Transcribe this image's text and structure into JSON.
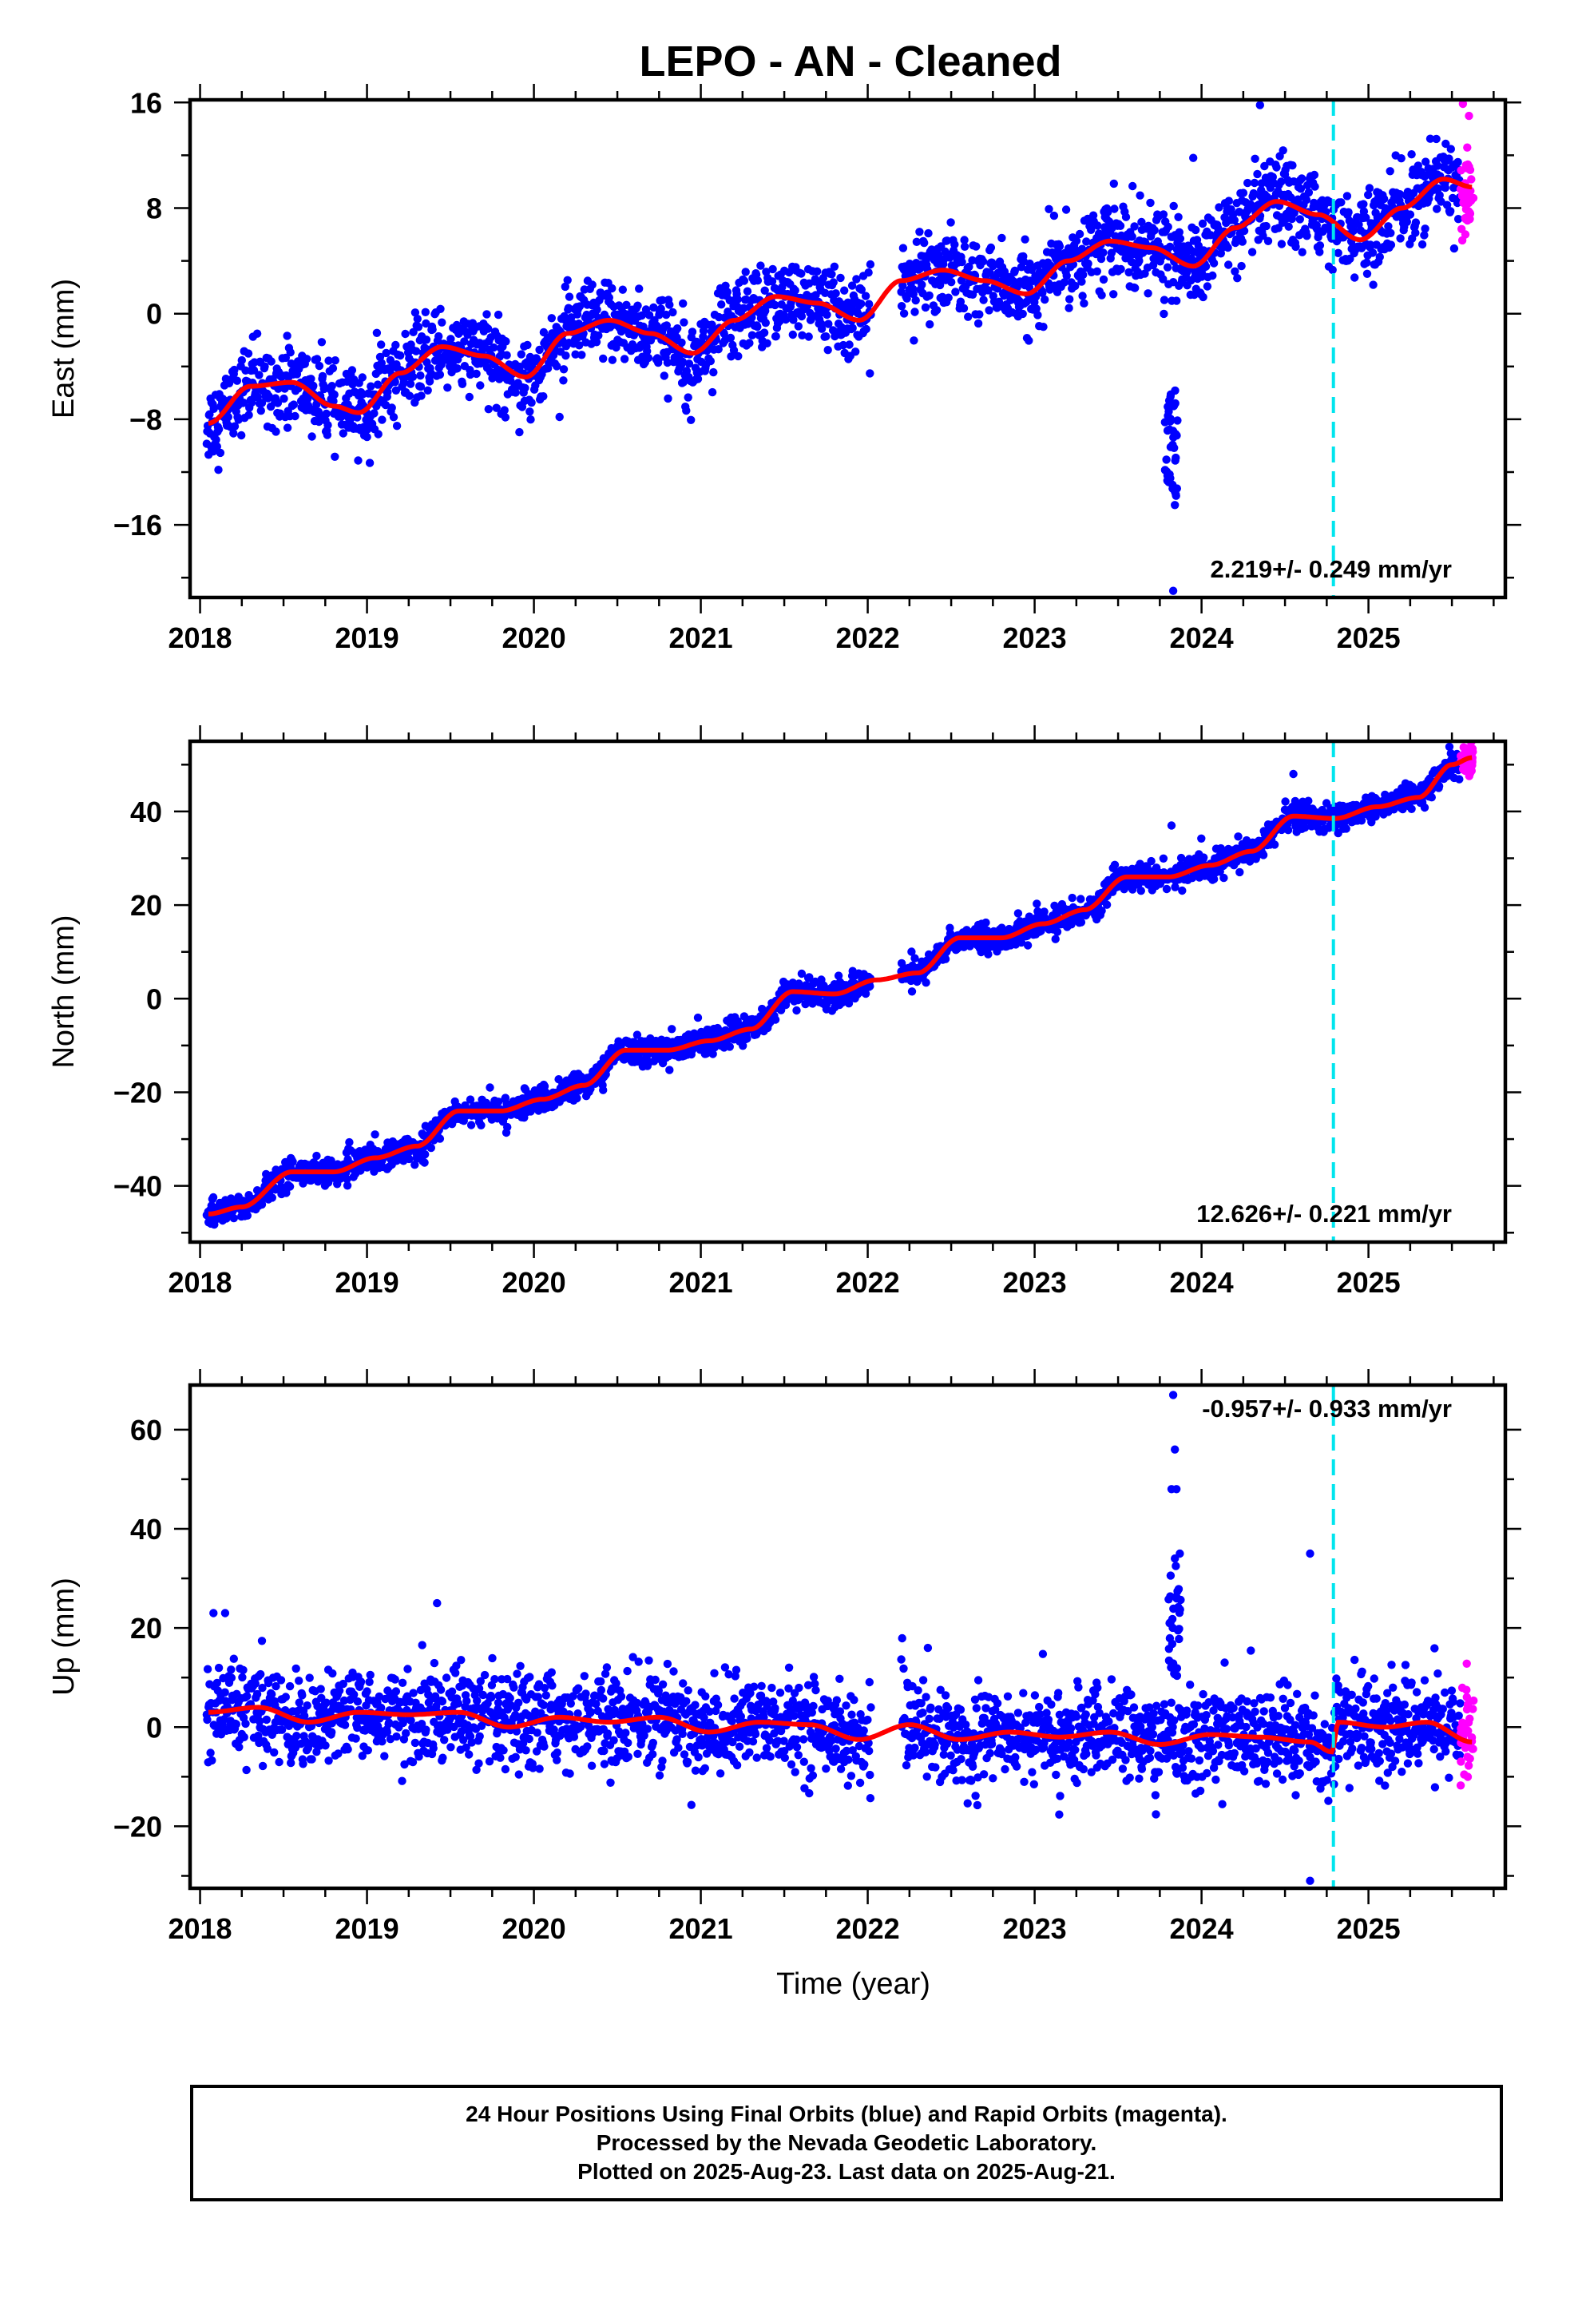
{
  "page": {
    "title": "LEPO  - AN - Cleaned",
    "footer": [
      "24 Hour Positions Using Final Orbits (blue) and Rapid Orbits (magenta).",
      "Processed by the Nevada Geodetic Laboratory.",
      "Plotted on 2025-Aug-23. Last data on 2025-Aug-21."
    ],
    "colors": {
      "final_orbits": "#0000ff",
      "rapid_orbits": "#ff00ff",
      "model_fit": "#ff0000",
      "step_marker": "#00e5ee"
    }
  },
  "chart_data": [
    {
      "type": "scatter",
      "id": "east",
      "title": "LEPO  - AN - Cleaned",
      "xlabel": "",
      "ylabel": "East (mm)",
      "xlim": [
        2017.94,
        2025.82
      ],
      "ylim": [
        -21.5,
        16.2
      ],
      "xticks": [
        2018,
        2019,
        2020,
        2021,
        2022,
        2023,
        2024,
        2025
      ],
      "yticks": [
        -16,
        -8,
        0,
        8,
        16
      ],
      "rate_label": "2.219+/- 0.249 mm/yr",
      "rate_position": "bottom-right",
      "step_marker_x": 2024.79,
      "grid": false,
      "legend": "none",
      "series": [
        {
          "role": "final",
          "color": "#0000ff",
          "x_range": [
            2018.04,
            2025.55
          ],
          "values_described_by": "fit"
        },
        {
          "role": "rapid",
          "color": "#ff00ff",
          "x_range": [
            2025.55,
            2025.63
          ]
        },
        {
          "role": "fit",
          "color": "#ff0000",
          "x": [
            2018.05,
            2018.3,
            2018.55,
            2018.8,
            2018.95,
            2019.2,
            2019.45,
            2019.7,
            2019.95,
            2020.2,
            2020.45,
            2020.7,
            2020.95,
            2021.2,
            2021.45,
            2021.7,
            2021.95,
            2022.2,
            2022.45,
            2022.7,
            2022.95,
            2023.2,
            2023.45,
            2023.7,
            2023.95,
            2024.2,
            2024.45,
            2024.7,
            2024.95,
            2025.2,
            2025.45,
            2025.62
          ],
          "values": [
            -8.3,
            -5.5,
            -5.2,
            -7.0,
            -7.5,
            -4.5,
            -2.5,
            -3.2,
            -4.8,
            -1.5,
            -0.5,
            -1.5,
            -3.0,
            -0.5,
            1.3,
            0.8,
            -0.5,
            2.5,
            3.3,
            2.5,
            1.5,
            4.0,
            5.5,
            5.0,
            3.6,
            6.5,
            8.5,
            7.5,
            5.6,
            8.0,
            10.2,
            9.6
          ]
        }
      ],
      "outliers": [
        {
          "x": 2023.83,
          "y": -21.0
        },
        {
          "x": 2023.84,
          "y": -14.5
        },
        {
          "x": 2024.35,
          "y": 15.8
        },
        {
          "x": 2023.95,
          "y": 11.8
        }
      ]
    },
    {
      "type": "scatter",
      "id": "north",
      "xlabel": "",
      "ylabel": "North (mm)",
      "xlim": [
        2017.94,
        2025.82
      ],
      "ylim": [
        -52,
        55
      ],
      "xticks": [
        2018,
        2019,
        2020,
        2021,
        2022,
        2023,
        2024,
        2025
      ],
      "yticks": [
        -40,
        -20,
        0,
        20,
        40
      ],
      "rate_label": "12.626+/- 0.221 mm/yr",
      "rate_position": "bottom-right",
      "step_marker_x": 2024.79,
      "grid": false,
      "legend": "none",
      "series": [
        {
          "role": "final",
          "color": "#0000ff",
          "x_range": [
            2018.04,
            2025.55
          ]
        },
        {
          "role": "rapid",
          "color": "#ff00ff",
          "x_range": [
            2025.55,
            2025.63
          ]
        },
        {
          "role": "fit",
          "color": "#ff0000",
          "x": [
            2018.05,
            2018.25,
            2018.55,
            2018.8,
            2019.05,
            2019.3,
            2019.55,
            2019.8,
            2020.05,
            2020.3,
            2020.55,
            2020.8,
            2021.05,
            2021.3,
            2021.55,
            2021.8,
            2022.05,
            2022.3,
            2022.55,
            2022.8,
            2023.05,
            2023.3,
            2023.55,
            2023.8,
            2024.05,
            2024.3,
            2024.55,
            2024.8,
            2025.05,
            2025.3,
            2025.5,
            2025.62
          ],
          "values": [
            -46,
            -44.5,
            -37,
            -37,
            -34,
            -31.5,
            -24,
            -24,
            -21.5,
            -18.5,
            -11,
            -11,
            -9,
            -6.5,
            1.5,
            1,
            4,
            5.5,
            13,
            13,
            16,
            19,
            26,
            26,
            28.5,
            31.5,
            39,
            38.5,
            41,
            43,
            50,
            51.5
          ]
        }
      ],
      "outliers": [
        {
          "x": 2023.82,
          "y": 37
        },
        {
          "x": 2024.55,
          "y": 48
        }
      ]
    },
    {
      "type": "scatter",
      "id": "up",
      "xlabel": "Time (year)",
      "ylabel": "Up (mm)",
      "xlim": [
        2017.94,
        2025.82
      ],
      "ylim": [
        -32.5,
        69
      ],
      "xticks": [
        2018,
        2019,
        2020,
        2021,
        2022,
        2023,
        2024,
        2025
      ],
      "yticks": [
        -20,
        0,
        20,
        40,
        60
      ],
      "rate_label": "-0.957+/- 0.933 mm/yr",
      "rate_position": "top-right",
      "step_marker_x": 2024.79,
      "grid": false,
      "legend": "none",
      "series": [
        {
          "role": "final",
          "color": "#0000ff",
          "x_range": [
            2018.04,
            2025.55
          ]
        },
        {
          "role": "rapid",
          "color": "#ff00ff",
          "x_range": [
            2025.55,
            2025.63
          ]
        },
        {
          "role": "fit",
          "color": "#ff0000",
          "x": [
            2018.05,
            2018.35,
            2018.65,
            2018.95,
            2019.25,
            2019.55,
            2019.85,
            2020.15,
            2020.45,
            2020.75,
            2021.05,
            2021.35,
            2021.65,
            2021.95,
            2022.25,
            2022.55,
            2022.85,
            2023.15,
            2023.45,
            2023.75,
            2024.05,
            2024.35,
            2024.65,
            2024.78,
            2024.82,
            2025.1,
            2025.35,
            2025.62
          ],
          "values": [
            3,
            4,
            1,
            3,
            2.5,
            3,
            0,
            2,
            1,
            2,
            -1,
            1,
            0.5,
            -2.5,
            0.5,
            -2.5,
            -1,
            -2,
            -1,
            -3.5,
            -1.5,
            -2,
            -3,
            -5,
            1,
            0,
            1,
            -3
          ]
        }
      ],
      "outliers": [
        {
          "x": 2023.83,
          "y": 67
        },
        {
          "x": 2023.84,
          "y": 56
        },
        {
          "x": 2023.82,
          "y": 48
        },
        {
          "x": 2023.85,
          "y": 48
        },
        {
          "x": 2024.65,
          "y": 35
        },
        {
          "x": 2024.65,
          "y": -31
        },
        {
          "x": 2019.42,
          "y": 25
        },
        {
          "x": 2018.08,
          "y": 23
        },
        {
          "x": 2018.15,
          "y": 23
        },
        {
          "x": 2023.87,
          "y": 35
        },
        {
          "x": 2023.84,
          "y": 34
        }
      ]
    }
  ]
}
